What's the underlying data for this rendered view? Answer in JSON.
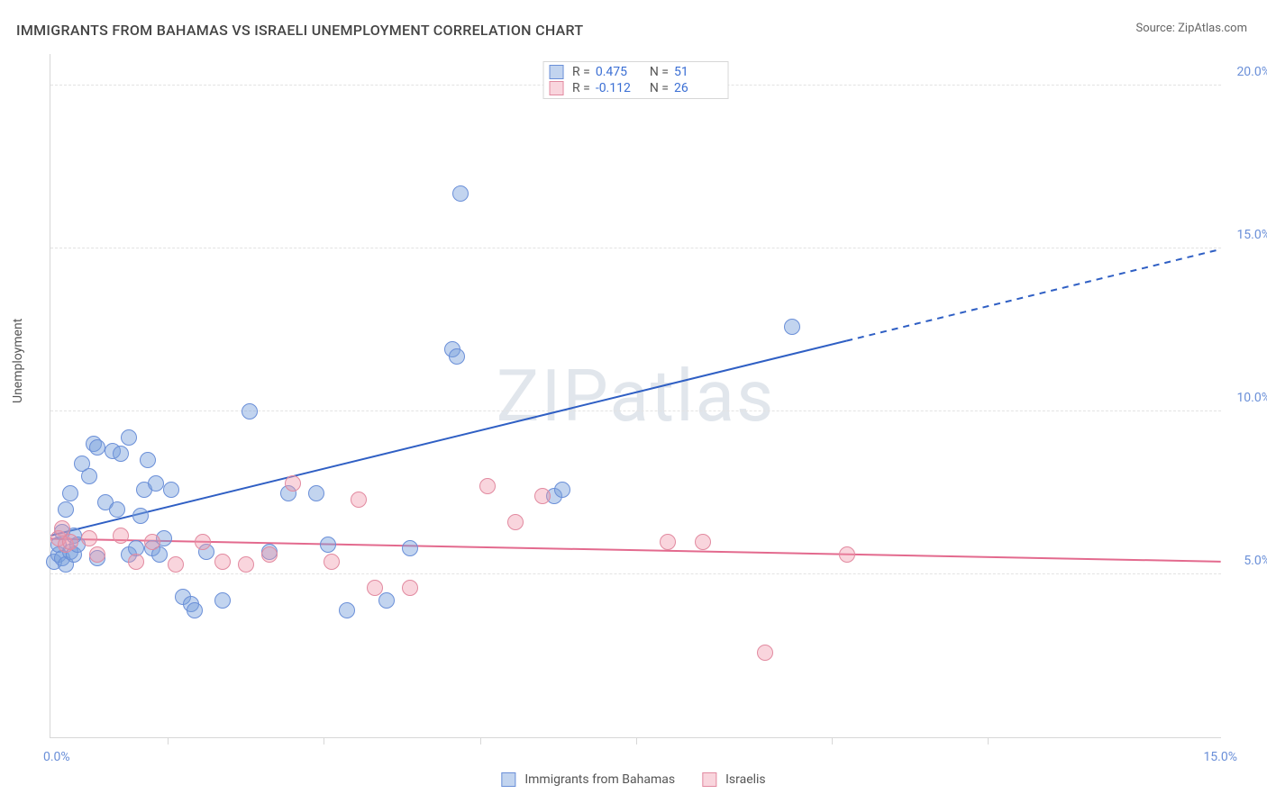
{
  "title": "IMMIGRANTS FROM BAHAMAS VS ISRAELI UNEMPLOYMENT CORRELATION CHART",
  "source_label": "Source: ZipAtlas.com",
  "watermark": "ZIPatlas",
  "y_axis_label": "Unemployment",
  "chart": {
    "type": "scatter",
    "background_color": "#ffffff",
    "grid_color": "#e3e3e3",
    "axis_color": "#d7d7d7",
    "xlim": [
      0,
      15
    ],
    "ylim": [
      0,
      21
    ],
    "y_ticks": [
      5,
      10,
      15,
      20
    ],
    "y_tick_labels": [
      "5.0%",
      "10.0%",
      "15.0%",
      "20.0%"
    ],
    "x_tick_labels": {
      "left": "0.0%",
      "right": "15.0%"
    },
    "x_minor_ticks": [
      1.5,
      3.5,
      5.5,
      7.5,
      10,
      12
    ],
    "tick_label_color": "#6a8fd8",
    "label_fontsize": 14,
    "title_fontsize": 16,
    "point_radius": 9,
    "series": [
      {
        "id": "bahamas",
        "label": "Immigrants from Bahamas",
        "fill": "rgba(120,160,220,0.45)",
        "stroke": "#6a8fd8",
        "correlation_R": "0.475",
        "N": "51",
        "trend": {
          "x1": 0,
          "y1": 6.2,
          "x2": 15,
          "y2": 15.0,
          "solid_until_x": 10.2,
          "color": "#2f5fc4",
          "width": 2
        },
        "points": [
          [
            0.05,
            5.4
          ],
          [
            0.1,
            5.6
          ],
          [
            0.1,
            5.9
          ],
          [
            0.15,
            6.3
          ],
          [
            0.15,
            5.5
          ],
          [
            0.2,
            5.3
          ],
          [
            0.2,
            7.0
          ],
          [
            0.25,
            5.7
          ],
          [
            0.25,
            7.5
          ],
          [
            0.3,
            6.2
          ],
          [
            0.3,
            5.6
          ],
          [
            0.35,
            5.9
          ],
          [
            0.4,
            8.4
          ],
          [
            0.5,
            8.0
          ],
          [
            0.55,
            9.0
          ],
          [
            0.6,
            8.9
          ],
          [
            0.6,
            5.5
          ],
          [
            0.7,
            7.2
          ],
          [
            0.8,
            8.8
          ],
          [
            0.85,
            7.0
          ],
          [
            0.9,
            8.7
          ],
          [
            1.0,
            9.2
          ],
          [
            1.0,
            5.6
          ],
          [
            1.1,
            5.8
          ],
          [
            1.15,
            6.8
          ],
          [
            1.2,
            7.6
          ],
          [
            1.25,
            8.5
          ],
          [
            1.3,
            5.8
          ],
          [
            1.35,
            7.8
          ],
          [
            1.4,
            5.6
          ],
          [
            1.45,
            6.1
          ],
          [
            1.55,
            7.6
          ],
          [
            1.7,
            4.3
          ],
          [
            1.8,
            4.1
          ],
          [
            1.85,
            3.9
          ],
          [
            2.0,
            5.7
          ],
          [
            2.2,
            4.2
          ],
          [
            2.55,
            10.0
          ],
          [
            2.8,
            5.7
          ],
          [
            3.05,
            7.5
          ],
          [
            3.4,
            7.5
          ],
          [
            3.55,
            5.9
          ],
          [
            3.8,
            3.9
          ],
          [
            4.3,
            4.2
          ],
          [
            4.6,
            5.8
          ],
          [
            5.15,
            11.9
          ],
          [
            5.2,
            11.7
          ],
          [
            5.25,
            16.7
          ],
          [
            6.45,
            7.4
          ],
          [
            6.55,
            7.6
          ],
          [
            9.5,
            12.6
          ]
        ]
      },
      {
        "id": "israelis",
        "label": "Israelis",
        "fill": "rgba(240,150,170,0.40)",
        "stroke": "#e28aa0",
        "correlation_R": "-0.112",
        "N": "26",
        "trend": {
          "x1": 0,
          "y1": 6.1,
          "x2": 15,
          "y2": 5.4,
          "solid_until_x": 15,
          "color": "#e36a8e",
          "width": 2
        },
        "points": [
          [
            0.1,
            6.1
          ],
          [
            0.15,
            6.4
          ],
          [
            0.2,
            5.9
          ],
          [
            0.25,
            6.0
          ],
          [
            0.5,
            6.1
          ],
          [
            0.6,
            5.6
          ],
          [
            0.9,
            6.2
          ],
          [
            1.1,
            5.4
          ],
          [
            1.3,
            6.0
          ],
          [
            1.6,
            5.3
          ],
          [
            1.95,
            6.0
          ],
          [
            2.2,
            5.4
          ],
          [
            2.5,
            5.3
          ],
          [
            2.8,
            5.6
          ],
          [
            3.1,
            7.8
          ],
          [
            3.6,
            5.4
          ],
          [
            3.95,
            7.3
          ],
          [
            4.15,
            4.6
          ],
          [
            4.6,
            4.6
          ],
          [
            5.6,
            7.7
          ],
          [
            5.95,
            6.6
          ],
          [
            6.3,
            7.4
          ],
          [
            7.9,
            6.0
          ],
          [
            8.35,
            6.0
          ],
          [
            9.15,
            2.6
          ],
          [
            10.2,
            5.6
          ]
        ]
      }
    ],
    "legend_top": {
      "rows": [
        {
          "series": "bahamas",
          "R_label": "R =",
          "N_label": "N ="
        },
        {
          "series": "israelis",
          "R_label": "R =",
          "N_label": "N ="
        }
      ]
    }
  }
}
